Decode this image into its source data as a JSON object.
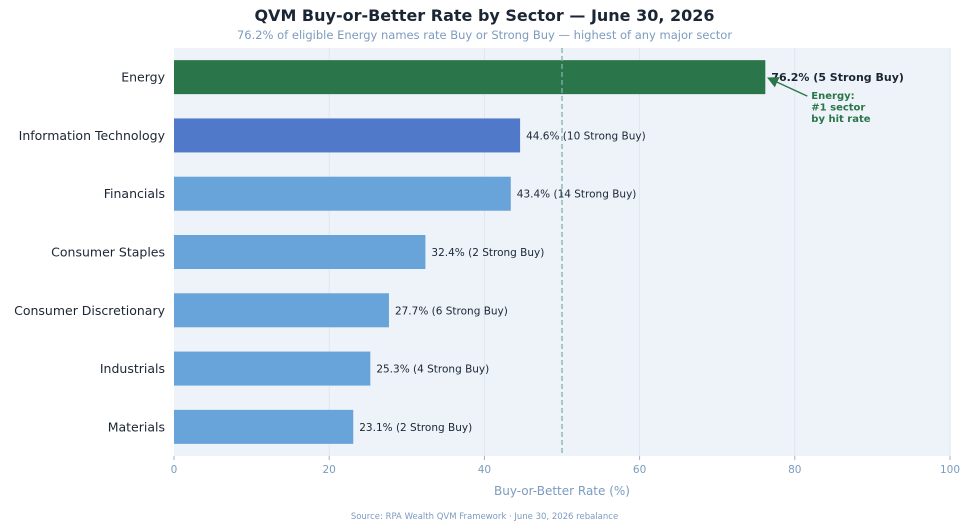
{
  "chart_data": {
    "type": "bar",
    "orientation": "horizontal",
    "title": "QVM Buy-or-Better Rate by Sector — June 30, 2026",
    "subtitle": "76.2% of eligible Energy names rate Buy or Strong Buy — highest of any major sector",
    "xlabel": "Buy-or-Better Rate (%)",
    "ylabel": "",
    "xlim": [
      0,
      100
    ],
    "xticks": [
      0,
      20,
      40,
      60,
      80,
      100
    ],
    "grid": true,
    "reference_line": {
      "value": 50,
      "style": "dashed"
    },
    "categories": [
      "Energy",
      "Information Technology",
      "Financials",
      "Consumer Staples",
      "Consumer Discretionary",
      "Industrials",
      "Materials"
    ],
    "values": [
      76.2,
      44.6,
      43.4,
      32.4,
      27.7,
      25.3,
      23.1
    ],
    "strong_buy_counts": [
      5,
      10,
      14,
      2,
      6,
      4,
      2
    ],
    "data_labels": [
      "76.2%  (5 Strong Buy)",
      "44.6%  (10 Strong Buy)",
      "43.4%  (14 Strong Buy)",
      "32.4%  (2 Strong Buy)",
      "27.7%  (6 Strong Buy)",
      "25.3%  (4 Strong Buy)",
      "23.1%  (2 Strong Buy)"
    ],
    "bar_colors": [
      "#2a7549",
      "#5079c9",
      "#68a3d9",
      "#68a3d9",
      "#68a3d9",
      "#68a3d9",
      "#68a3d9"
    ],
    "annotation": {
      "lines": [
        "Energy:",
        "#1 sector",
        "by hit rate"
      ],
      "target": "Energy",
      "color": "#2a7549"
    },
    "source": "Source: RPA Wealth QVM Framework · June 30, 2026 rebalance"
  }
}
